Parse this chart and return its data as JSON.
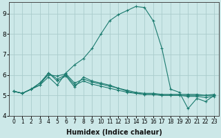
{
  "title": "",
  "xlabel": "Humidex (Indice chaleur)",
  "bg_color": "#cce8e8",
  "grid_color": "#aacccc",
  "line_color": "#1a7a6e",
  "xlim": [
    -0.5,
    23.5
  ],
  "ylim": [
    4.0,
    9.55
  ],
  "yticks": [
    4,
    5,
    6,
    7,
    8,
    9
  ],
  "xticks": [
    0,
    1,
    2,
    3,
    4,
    5,
    6,
    7,
    8,
    9,
    10,
    11,
    12,
    13,
    14,
    15,
    16,
    17,
    18,
    19,
    20,
    21,
    22,
    23
  ],
  "lines": [
    [
      5.2,
      5.1,
      5.3,
      5.5,
      5.9,
      5.5,
      6.1,
      6.5,
      6.8,
      7.3,
      8.0,
      8.65,
      8.95,
      9.15,
      9.35,
      9.3,
      8.65,
      7.3,
      5.3,
      5.15,
      4.35,
      4.85,
      4.7,
      5.0
    ],
    [
      5.2,
      5.1,
      5.3,
      5.5,
      6.1,
      5.7,
      5.95,
      5.4,
      5.9,
      5.7,
      5.6,
      5.5,
      5.35,
      5.2,
      5.1,
      5.05,
      5.05,
      5.0,
      5.0,
      5.0,
      4.95,
      4.95,
      4.9,
      4.95
    ],
    [
      5.2,
      5.1,
      5.3,
      5.6,
      6.1,
      5.8,
      6.0,
      5.5,
      5.7,
      5.55,
      5.45,
      5.35,
      5.25,
      5.15,
      5.1,
      5.05,
      5.05,
      5.0,
      5.0,
      5.0,
      5.0,
      5.0,
      5.0,
      5.0
    ],
    [
      5.2,
      5.1,
      5.3,
      5.6,
      6.0,
      5.95,
      6.05,
      5.6,
      5.8,
      5.65,
      5.55,
      5.45,
      5.35,
      5.25,
      5.15,
      5.1,
      5.1,
      5.05,
      5.05,
      5.05,
      5.05,
      5.05,
      5.0,
      5.05
    ]
  ],
  "marker": "+",
  "markersize": 2.5,
  "linewidth": 0.8
}
